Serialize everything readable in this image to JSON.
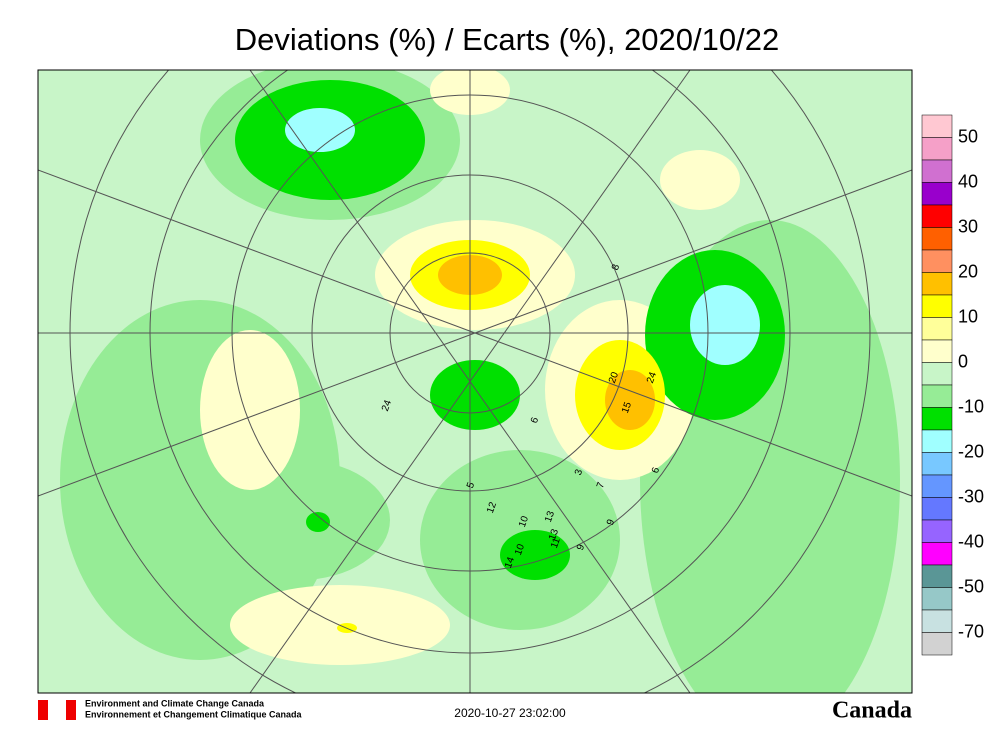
{
  "header": {
    "title": "Deviations (%) / Ecarts (%), 2020/10/22"
  },
  "legend": {
    "colors": [
      "#ffc8d2",
      "#f5a0c8",
      "#d070d0",
      "#9900cc",
      "#ff0000",
      "#ff6000",
      "#ff9060",
      "#ffc000",
      "#ffff00",
      "#ffff9a",
      "#ffffcc",
      "#c8f5c8",
      "#96ec96",
      "#00e000",
      "#a0ffff",
      "#78c8ff",
      "#6496ff",
      "#6478ff",
      "#9664ff",
      "#ff00ff",
      "#5a9696",
      "#96c8c8",
      "#c8e1e1",
      "#d2d2d2"
    ],
    "labels": [
      "50",
      "40",
      "30",
      "20",
      "10",
      "0",
      "-10",
      "-20",
      "-30",
      "-40",
      "-50",
      "-70"
    ]
  },
  "stations": [
    "20",
    "24",
    "15",
    "13",
    "10",
    "14",
    "9",
    "6",
    "8",
    "5",
    "3",
    "7",
    "24",
    "13",
    "11",
    "10",
    "12",
    "9",
    "6"
  ],
  "footer": {
    "agency_en": "Environment and Climate Change Canada",
    "agency_fr": "Environnement et Changement Climatique Canada",
    "timestamp": "2020-10-27 23:02:00",
    "wordmark": "Canada"
  }
}
